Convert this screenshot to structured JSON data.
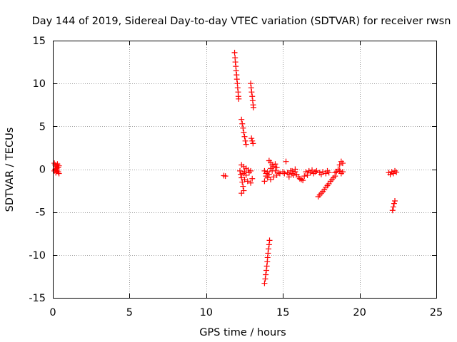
{
  "chart_data": {
    "type": "scatter",
    "title": "Day 144 of 2019, Sidereal Day-to-day VTEC variation (SDTVAR) for receiver rwsn",
    "xlabel": "GPS time / hours",
    "ylabel": "SDTVAR / TECUs",
    "xlim": [
      0,
      25
    ],
    "ylim": [
      -15,
      15
    ],
    "xticks": [
      0,
      5,
      10,
      15,
      20,
      25
    ],
    "yticks": [
      -15,
      -10,
      -5,
      0,
      5,
      10,
      15
    ],
    "grid": true,
    "marker": "plus",
    "color": "#ff0000",
    "series": [
      {
        "name": "SDTVAR",
        "points": [
          [
            0.1,
            0.7
          ],
          [
            0.15,
            0.5
          ],
          [
            0.2,
            0.3
          ],
          [
            0.25,
            0.1
          ],
          [
            0.3,
            -0.1
          ],
          [
            0.35,
            -0.3
          ],
          [
            0.4,
            -0.5
          ],
          [
            0.15,
            0.0
          ],
          [
            0.3,
            0.6
          ],
          [
            0.2,
            -0.4
          ],
          [
            0.35,
            0.2
          ],
          [
            0.1,
            -0.2
          ],
          [
            0.4,
            0.4
          ],
          [
            11.15,
            -0.75
          ],
          [
            11.25,
            -0.8
          ],
          [
            11.85,
            13.6
          ],
          [
            11.88,
            13.0
          ],
          [
            11.9,
            12.5
          ],
          [
            11.93,
            12.0
          ],
          [
            11.95,
            11.5
          ],
          [
            11.98,
            11.0
          ],
          [
            12.0,
            10.5
          ],
          [
            12.03,
            10.0
          ],
          [
            12.05,
            9.5
          ],
          [
            12.08,
            9.0
          ],
          [
            12.1,
            8.5
          ],
          [
            12.12,
            8.2
          ],
          [
            12.9,
            10.0
          ],
          [
            12.93,
            9.5
          ],
          [
            12.96,
            9.0
          ],
          [
            13.0,
            8.5
          ],
          [
            13.03,
            8.0
          ],
          [
            13.06,
            7.5
          ],
          [
            13.08,
            7.2
          ],
          [
            12.95,
            3.6
          ],
          [
            13.0,
            3.3
          ],
          [
            13.05,
            3.0
          ],
          [
            12.3,
            5.8
          ],
          [
            12.35,
            5.3
          ],
          [
            12.4,
            4.8
          ],
          [
            12.45,
            4.3
          ],
          [
            12.5,
            3.8
          ],
          [
            12.55,
            3.3
          ],
          [
            12.6,
            2.9
          ],
          [
            12.3,
            0.5
          ],
          [
            12.45,
            0.3
          ],
          [
            12.6,
            0.1
          ],
          [
            12.75,
            -0.1
          ],
          [
            12.9,
            -0.2
          ],
          [
            12.4,
            -0.5
          ],
          [
            12.6,
            -0.7
          ],
          [
            12.8,
            -0.4
          ],
          [
            12.5,
            -0.3
          ],
          [
            12.3,
            -1.0
          ],
          [
            12.35,
            -1.5
          ],
          [
            12.4,
            -2.0
          ],
          [
            12.45,
            -2.5
          ],
          [
            12.3,
            -2.8
          ],
          [
            12.5,
            -1.2
          ],
          [
            12.7,
            -1.4
          ],
          [
            12.9,
            -1.6
          ],
          [
            13.0,
            -1.1
          ],
          [
            12.2,
            -0.2
          ],
          [
            12.25,
            -0.6
          ],
          [
            13.8,
            -13.3
          ],
          [
            13.85,
            -12.8
          ],
          [
            13.88,
            -12.3
          ],
          [
            13.92,
            -11.8
          ],
          [
            13.95,
            -11.3
          ],
          [
            13.98,
            -10.8
          ],
          [
            14.0,
            -10.3
          ],
          [
            14.03,
            -9.8
          ],
          [
            14.06,
            -9.3
          ],
          [
            14.1,
            -8.8
          ],
          [
            14.13,
            -8.3
          ],
          [
            13.8,
            -0.2
          ],
          [
            13.9,
            -0.5
          ],
          [
            14.0,
            -0.3
          ],
          [
            14.1,
            -0.6
          ],
          [
            14.2,
            0.1
          ],
          [
            14.3,
            -0.2
          ],
          [
            14.1,
            1.0
          ],
          [
            14.2,
            0.8
          ],
          [
            14.3,
            0.5
          ],
          [
            14.4,
            0.3
          ],
          [
            14.5,
            0.6
          ],
          [
            14.6,
            0.2
          ],
          [
            13.9,
            -0.8
          ],
          [
            14.0,
            -1.0
          ],
          [
            14.2,
            -1.2
          ],
          [
            14.4,
            -0.9
          ],
          [
            14.6,
            -0.7
          ],
          [
            14.8,
            -0.5
          ],
          [
            13.8,
            -1.4
          ],
          [
            14.5,
            -0.2
          ],
          [
            14.7,
            -0.4
          ],
          [
            15.0,
            -0.3
          ],
          [
            15.1,
            -0.5
          ],
          [
            15.2,
            0.9
          ],
          [
            15.3,
            -0.4
          ],
          [
            15.4,
            -0.6
          ],
          [
            15.5,
            -0.2
          ],
          [
            15.6,
            -0.5
          ],
          [
            15.7,
            -0.7
          ],
          [
            15.8,
            -0.3
          ],
          [
            15.9,
            -0.6
          ],
          [
            16.0,
            -0.9
          ],
          [
            16.1,
            -1.1
          ],
          [
            16.2,
            -1.2
          ],
          [
            16.3,
            -1.3
          ],
          [
            16.4,
            -0.8
          ],
          [
            16.5,
            -0.3
          ],
          [
            16.6,
            -0.7
          ],
          [
            16.7,
            -0.2
          ],
          [
            16.8,
            -0.4
          ],
          [
            16.9,
            -0.1
          ],
          [
            15.4,
            -0.9
          ],
          [
            15.6,
            -0.2
          ],
          [
            15.8,
            0.0
          ],
          [
            17.0,
            -0.5
          ],
          [
            17.1,
            -0.3
          ],
          [
            17.2,
            -0.2
          ],
          [
            17.4,
            -0.4
          ],
          [
            17.5,
            -0.6
          ],
          [
            17.6,
            -0.3
          ],
          [
            17.8,
            -0.5
          ],
          [
            17.9,
            -0.2
          ],
          [
            18.0,
            -0.4
          ],
          [
            17.3,
            -3.2
          ],
          [
            17.4,
            -3.0
          ],
          [
            17.5,
            -2.8
          ],
          [
            17.6,
            -2.6
          ],
          [
            17.7,
            -2.4
          ],
          [
            17.8,
            -2.1
          ],
          [
            17.9,
            -1.9
          ],
          [
            18.0,
            -1.7
          ],
          [
            18.1,
            -1.4
          ],
          [
            18.2,
            -1.2
          ],
          [
            18.3,
            -1.0
          ],
          [
            18.4,
            -0.8
          ],
          [
            18.4,
            -0.4
          ],
          [
            18.5,
            -0.3
          ],
          [
            18.6,
            0.0
          ],
          [
            18.7,
            0.5
          ],
          [
            18.8,
            0.9
          ],
          [
            18.9,
            0.7
          ],
          [
            18.7,
            -0.2
          ],
          [
            18.8,
            -0.5
          ],
          [
            18.9,
            -0.3
          ],
          [
            21.9,
            -0.4
          ],
          [
            22.0,
            -0.6
          ],
          [
            22.1,
            -0.3
          ],
          [
            22.2,
            -0.5
          ],
          [
            22.3,
            -0.2
          ],
          [
            22.4,
            -0.35
          ],
          [
            22.15,
            -4.8
          ],
          [
            22.2,
            -4.4
          ],
          [
            22.25,
            -4.0
          ],
          [
            22.3,
            -3.7
          ]
        ]
      }
    ]
  }
}
